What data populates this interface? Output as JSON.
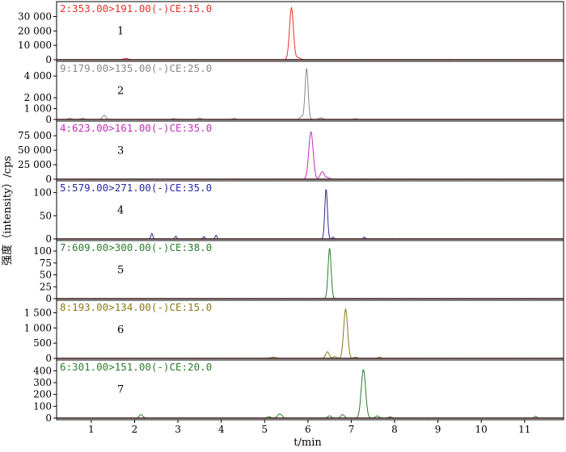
{
  "chart_data": {
    "type": "line",
    "xlabel": "t/min",
    "ylabel": "强度（intensity）/cps",
    "x_ticks": [
      1,
      2,
      3,
      4,
      5,
      6,
      7,
      8,
      9,
      10,
      11
    ],
    "xlim": [
      0.2,
      11.9
    ],
    "panels": [
      {
        "index": "1",
        "channel": "2:353.00>191.00(-)CE:15.0",
        "color": "#e8312a",
        "ylim": [
          0,
          37000
        ],
        "yticks": [
          0,
          10000,
          20000,
          30000
        ],
        "ytick_labels": [
          "0",
          "10 000",
          "20 000",
          "30 000"
        ],
        "peaks": [
          {
            "rt": 5.62,
            "height": 36000,
            "width": 0.045
          },
          {
            "rt": 5.78,
            "height": 1400,
            "width": 0.05
          },
          {
            "rt": 1.8,
            "height": 900,
            "width": 0.05
          }
        ]
      },
      {
        "index": "2",
        "channel": "9:179.00>135.00(-)CE:25.0",
        "color": "#8a8a8a",
        "ylim": [
          0,
          4900
        ],
        "yticks": [
          0,
          1000,
          2000,
          4000
        ],
        "ytick_labels": [
          "0",
          "1 000",
          "2 000",
          "4 000"
        ],
        "peaks": [
          {
            "rt": 5.97,
            "height": 4700,
            "width": 0.035
          },
          {
            "rt": 5.85,
            "height": 250,
            "width": 0.04
          },
          {
            "rt": 1.3,
            "height": 380,
            "width": 0.04
          },
          {
            "rt": 0.5,
            "height": 100,
            "width": 0.04
          },
          {
            "rt": 0.8,
            "height": 90,
            "width": 0.04
          },
          {
            "rt": 2.9,
            "height": 80,
            "width": 0.04
          },
          {
            "rt": 3.5,
            "height": 120,
            "width": 0.04
          },
          {
            "rt": 4.3,
            "height": 90,
            "width": 0.04
          },
          {
            "rt": 6.3,
            "height": 160,
            "width": 0.04
          },
          {
            "rt": 7.1,
            "height": 70,
            "width": 0.04
          }
        ]
      },
      {
        "index": "3",
        "channel": "4:623.00>161.00(-)CE:35.0",
        "color": "#c030b8",
        "ylim": [
          0,
          92000
        ],
        "yticks": [
          0,
          25000,
          50000,
          75000
        ],
        "ytick_labels": [
          "0",
          "25 000",
          "50 000",
          "75 000"
        ],
        "peaks": [
          {
            "rt": 6.07,
            "height": 82000,
            "width": 0.05
          },
          {
            "rt": 6.33,
            "height": 13000,
            "width": 0.045
          },
          {
            "rt": 6.45,
            "height": 3000,
            "width": 0.04
          }
        ]
      },
      {
        "index": "4",
        "channel": "5:579.00>271.00(-)CE:35.0",
        "color": "#2a2aa0",
        "ylim": [
          0,
          115
        ],
        "yticks": [
          0,
          50,
          100
        ],
        "ytick_labels": [
          "0",
          "50",
          "100"
        ],
        "peaks": [
          {
            "rt": 6.42,
            "height": 108,
            "width": 0.03
          },
          {
            "rt": 2.4,
            "height": 12,
            "width": 0.02
          },
          {
            "rt": 2.95,
            "height": 6,
            "width": 0.02
          },
          {
            "rt": 3.6,
            "height": 5,
            "width": 0.02
          },
          {
            "rt": 3.88,
            "height": 8,
            "width": 0.02
          },
          {
            "rt": 6.58,
            "height": 4,
            "width": 0.02
          },
          {
            "rt": 7.3,
            "height": 4,
            "width": 0.02
          }
        ]
      },
      {
        "index": "5",
        "channel": "7:609.00>300.00(-)CE:38.0",
        "color": "#2e7d2e",
        "ylim": [
          0,
          112
        ],
        "yticks": [
          0,
          25,
          50,
          75,
          100
        ],
        "ytick_labels": [
          "0",
          "25",
          "50",
          "75",
          "100"
        ],
        "peaks": [
          {
            "rt": 6.5,
            "height": 106,
            "width": 0.035
          }
        ]
      },
      {
        "index": "6",
        "channel": "8:193.00>134.00(-)CE:15.0",
        "color": "#8a7a1c",
        "ylim": [
          0,
          1750
        ],
        "yticks": [
          0,
          500,
          1000,
          1500
        ],
        "ytick_labels": [
          "0",
          "500",
          "1 000",
          "1 500"
        ],
        "peaks": [
          {
            "rt": 6.87,
            "height": 1620,
            "width": 0.045
          },
          {
            "rt": 6.45,
            "height": 220,
            "width": 0.04
          },
          {
            "rt": 6.62,
            "height": 60,
            "width": 0.04
          },
          {
            "rt": 5.2,
            "height": 40,
            "width": 0.06
          },
          {
            "rt": 7.1,
            "height": 40,
            "width": 0.04
          },
          {
            "rt": 7.65,
            "height": 40,
            "width": 0.04
          }
        ]
      },
      {
        "index": "7",
        "channel": "6:301.00>151.00(-)CE:20.0",
        "color": "#2e7d2e",
        "ylim": [
          0,
          450
        ],
        "yticks": [
          0,
          100,
          200,
          300,
          400
        ],
        "ytick_labels": [
          "0",
          "100",
          "200",
          "300",
          "400"
        ],
        "peaks": [
          {
            "rt": 7.28,
            "height": 410,
            "width": 0.05
          },
          {
            "rt": 2.15,
            "height": 30,
            "width": 0.04
          },
          {
            "rt": 5.35,
            "height": 35,
            "width": 0.05
          },
          {
            "rt": 5.1,
            "height": 12,
            "width": 0.04
          },
          {
            "rt": 6.5,
            "height": 20,
            "width": 0.04
          },
          {
            "rt": 6.8,
            "height": 30,
            "width": 0.04
          },
          {
            "rt": 7.6,
            "height": 18,
            "width": 0.04
          },
          {
            "rt": 7.9,
            "height": 10,
            "width": 0.04
          },
          {
            "rt": 11.25,
            "height": 15,
            "width": 0.03
          }
        ]
      }
    ]
  }
}
